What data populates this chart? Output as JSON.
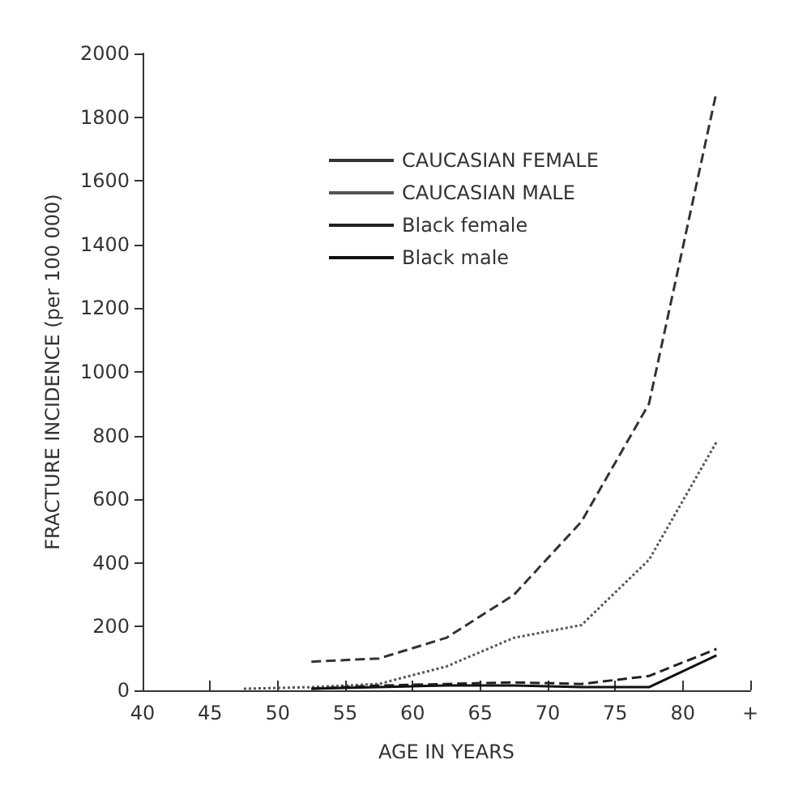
{
  "chart_data": {
    "type": "line",
    "xlabel": "AGE IN YEARS",
    "ylabel": "FRACTURE INCIDENCE (per 100 000)",
    "xlim": [
      40,
      85
    ],
    "xticks": [
      40,
      45,
      50,
      55,
      60,
      65,
      70,
      75,
      80,
      {
        "value": 85,
        "label": "+"
      }
    ],
    "ylim": [
      0,
      2000
    ],
    "yticks": [
      0,
      200,
      400,
      600,
      800,
      1000,
      1200,
      1400,
      1600,
      1800,
      2000
    ],
    "grid": false,
    "legend": "top left",
    "marker": "none",
    "series": [
      {
        "name": "CAUCASIAN FEMALE",
        "color": "#333333",
        "line_style": "dashed",
        "x": [
          52.5,
          57.5,
          62.5,
          67.5,
          72.5,
          77.5,
          82.5
        ],
        "values": [
          90,
          100,
          165,
          300,
          530,
          900,
          1880
        ]
      },
      {
        "name": "CAUCASIAN MALE",
        "color": "#555555",
        "line_style": "dotted",
        "x": [
          47.5,
          52.5,
          57.5,
          62.5,
          67.5,
          72.5,
          77.5,
          82.5
        ],
        "values": [
          5,
          10,
          20,
          75,
          165,
          205,
          410,
          780
        ]
      },
      {
        "name": "Black female",
        "color": "#222222",
        "line_style": "dashed",
        "x": [
          52.5,
          57.5,
          62.5,
          67.5,
          72.5,
          77.5,
          82.5
        ],
        "values": [
          5,
          15,
          20,
          25,
          20,
          45,
          130
        ]
      },
      {
        "name": "Black male",
        "color": "#111111",
        "line_style": "solid",
        "x": [
          52.5,
          57.5,
          62.5,
          67.5,
          72.5,
          77.5,
          82.5
        ],
        "values": [
          5,
          10,
          15,
          15,
          10,
          10,
          110
        ]
      }
    ]
  }
}
